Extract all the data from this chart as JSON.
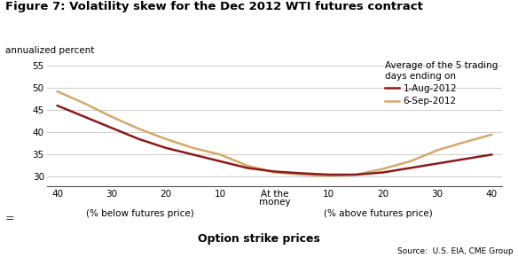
{
  "title": "Figure 7: Volatility skew for the Dec 2012 WTI futures contract",
  "ylabel": "annualized percent",
  "xlabel": "Option strike prices",
  "source_text": "Source:  U.S. EIA, CME Group",
  "legend_title": "Average of the 5 trading\ndays ending on",
  "series1_label": "1-Aug-2012",
  "series2_label": "6-Sep-2012",
  "series1_color": "#8B1A1A",
  "series2_color": "#D4A96A",
  "ylim": [
    28,
    57
  ],
  "yticks": [
    30,
    35,
    40,
    45,
    50,
    55
  ],
  "x_positions": [
    -40,
    -35,
    -30,
    -25,
    -20,
    -15,
    -10,
    -5,
    0,
    5,
    10,
    15,
    20,
    25,
    30,
    35,
    40
  ],
  "series1_y": [
    46.0,
    43.5,
    41.0,
    38.5,
    36.5,
    35.0,
    33.5,
    32.0,
    31.2,
    30.8,
    30.5,
    30.5,
    31.0,
    32.0,
    33.0,
    34.0,
    35.0
  ],
  "series2_y": [
    49.2,
    46.5,
    43.5,
    40.8,
    38.5,
    36.5,
    35.0,
    32.5,
    31.0,
    30.5,
    30.2,
    30.5,
    31.8,
    33.5,
    36.0,
    37.8,
    39.5
  ],
  "xtick_positions": [
    -40,
    -30,
    -20,
    -10,
    0,
    10,
    20,
    30,
    40
  ],
  "xtick_labels": [
    "40",
    "30",
    "20",
    "10",
    "At the\nmoney",
    "10",
    "20",
    "30",
    "40"
  ],
  "below_label": "(% below futures price)",
  "above_label": "(% above futures price)",
  "grid_color": "#CCCCCC",
  "background_color": "#FFFFFF",
  "line_width": 1.8,
  "title_fontsize": 9.5,
  "axis_fontsize": 7.5,
  "xlabel_fontsize": 9.0,
  "source_fontsize": 6.5,
  "legend_fontsize": 7.5
}
